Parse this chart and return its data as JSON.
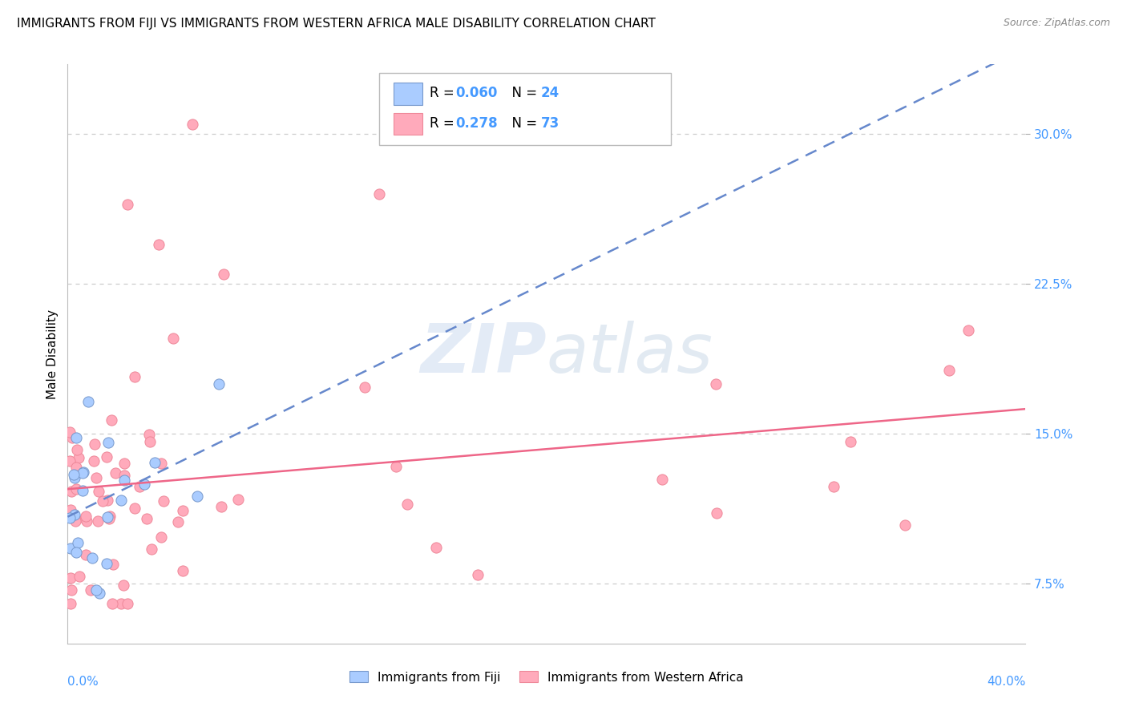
{
  "title": "IMMIGRANTS FROM FIJI VS IMMIGRANTS FROM WESTERN AFRICA MALE DISABILITY CORRELATION CHART",
  "source": "Source: ZipAtlas.com",
  "ylabel": "Male Disability",
  "yticks": [
    0.075,
    0.15,
    0.225,
    0.3
  ],
  "ytick_labels": [
    "7.5%",
    "15.0%",
    "22.5%",
    "30.0%"
  ],
  "xlim": [
    0.0,
    0.4
  ],
  "ylim": [
    0.045,
    0.335
  ],
  "fiji_color": "#aaccff",
  "fiji_edge": "#7799cc",
  "wa_color": "#ffaabb",
  "wa_edge": "#ee8899",
  "fiji_R": 0.06,
  "fiji_N": 24,
  "wa_R": 0.278,
  "wa_N": 73,
  "background_color": "#ffffff",
  "grid_color": "#cccccc",
  "tick_color": "#4499ff",
  "watermark_color": "#d0dff0",
  "legend_text_color": "#000000",
  "legend_val_color": "#4499ff",
  "fiji_line_color": "#6688cc",
  "wa_line_color": "#ee6688"
}
